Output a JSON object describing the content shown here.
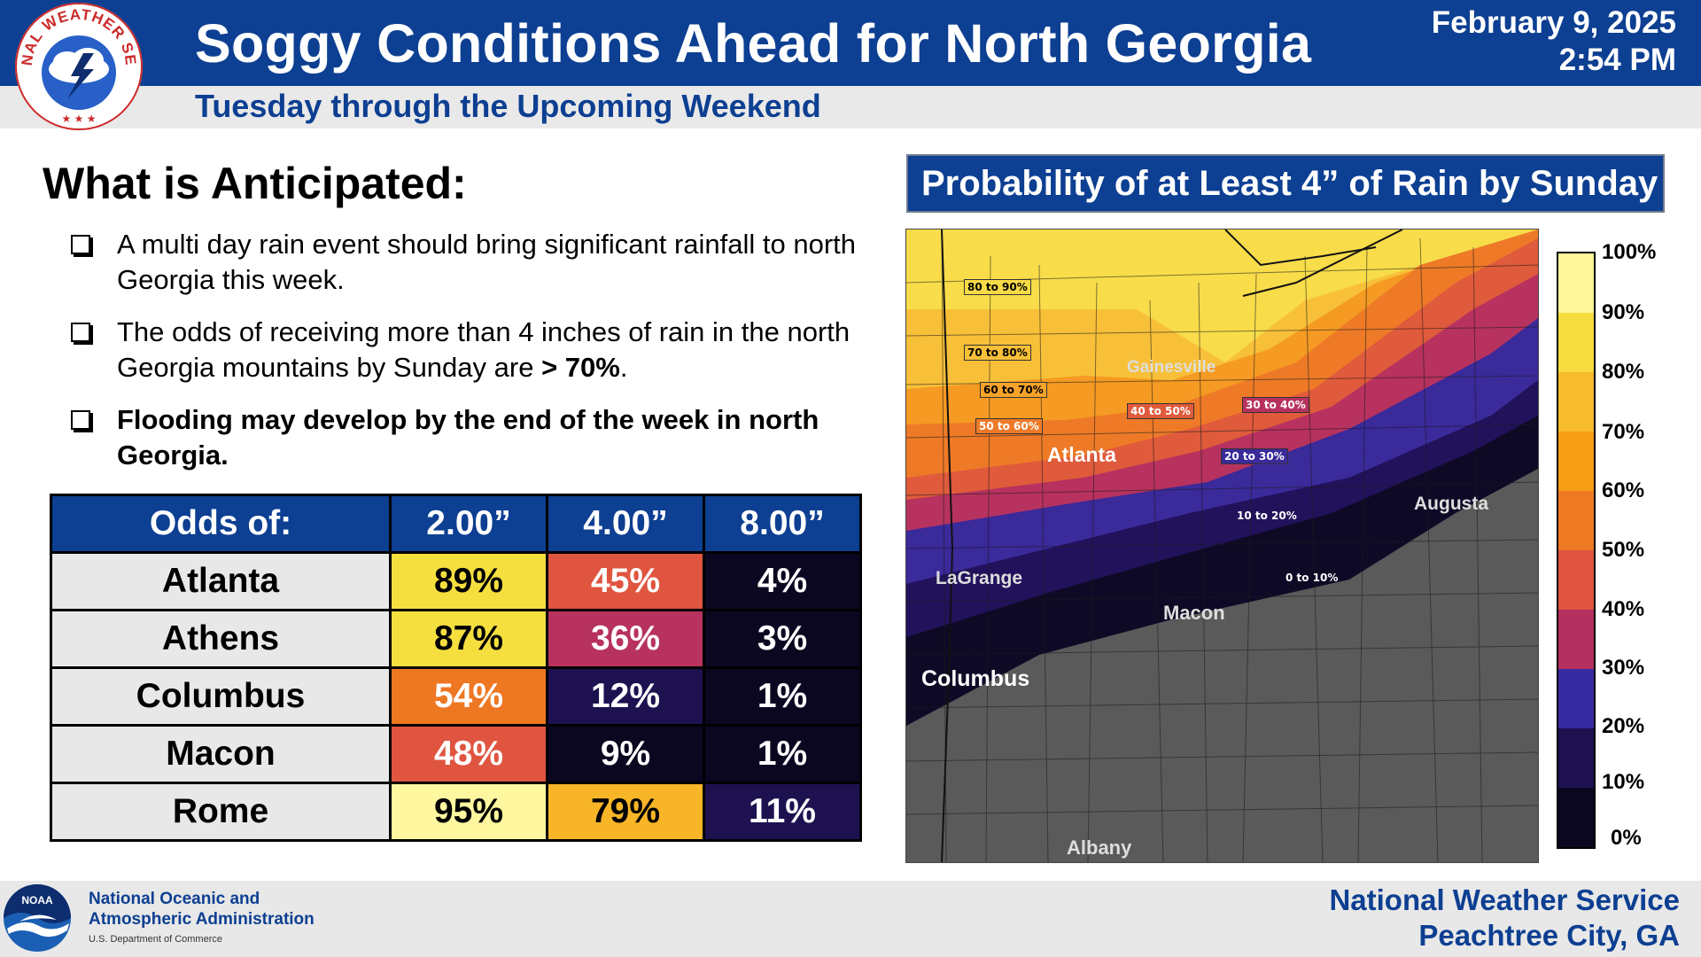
{
  "header": {
    "title": "Soggy Conditions Ahead for North Georgia",
    "subtitle": "Tuesday through the Upcoming Weekend",
    "date": "February 9, 2025",
    "time": "2:54 PM",
    "logo_text_top": "NATIONAL WEATHER SERVICE",
    "logo_icon": "nws-seal-icon"
  },
  "anticipated": {
    "heading": "What is Anticipated:",
    "bullets": [
      {
        "text": "A multi day rain event should bring significant rainfall to north Georgia this week."
      },
      {
        "text_pre": "The odds of receiving more than 4 inches of rain in the north Georgia mountains by Sunday are ",
        "text_bold": "> 70%",
        "text_post": "."
      },
      {
        "text": "Flooding may develop by the end of the week in north Georgia."
      }
    ]
  },
  "odds_table": {
    "headers": [
      "Odds of:",
      "2.00”",
      "4.00”",
      "8.00”"
    ],
    "rows": [
      {
        "city": "Atlanta",
        "values": [
          "89%",
          "45%",
          "4%"
        ]
      },
      {
        "city": "Athens",
        "values": [
          "87%",
          "36%",
          "3%"
        ]
      },
      {
        "city": "Columbus",
        "values": [
          "54%",
          "12%",
          "1%"
        ]
      },
      {
        "city": "Macon",
        "values": [
          "48%",
          "9%",
          "1%"
        ]
      },
      {
        "city": "Rome",
        "values": [
          "95%",
          "79%",
          "11%"
        ]
      }
    ],
    "cell_colors": [
      [
        "#f5df3f",
        "#df5540",
        "#0b0720"
      ],
      [
        "#f5df3f",
        "#b7325f",
        "#0b0720"
      ],
      [
        "#ee7722",
        "#1e1150",
        "#0b0720"
      ],
      [
        "#df5540",
        "#0b0720",
        "#0b0720"
      ],
      [
        "#fef7a0",
        "#f8b528",
        "#1e1150"
      ]
    ],
    "cell_text_colors": [
      [
        "#000000",
        "#ffffff",
        "#ffffff"
      ],
      [
        "#000000",
        "#ffffff",
        "#ffffff"
      ],
      [
        "#ffffff",
        "#ffffff",
        "#ffffff"
      ],
      [
        "#ffffff",
        "#ffffff",
        "#ffffff"
      ],
      [
        "#000000",
        "#000000",
        "#ffffff"
      ]
    ]
  },
  "map_panel": {
    "title": "Probability of at Least 4” of Rain by Sunday",
    "cities": [
      "Gainesville",
      "Atlanta",
      "Augusta",
      "LaGrange",
      "Macon",
      "Columbus",
      "Albany"
    ],
    "band_labels": [
      "80 to 90%",
      "70 to 80%",
      "60 to 70%",
      "50 to 60%",
      "40 to 50%",
      "30 to 40%",
      "20 to 30%",
      "10 to 20%",
      "0 to 10%"
    ],
    "band_colors": [
      "#f8dc4a",
      "#f8c038",
      "#f59a22",
      "#ee7a28",
      "#e05a3c",
      "#b7325e",
      "#3a2a9a",
      "#22125c",
      "#0e0a26",
      "#5a5a5a"
    ]
  },
  "legend": {
    "ticks": [
      "100%",
      "90%",
      "80%",
      "70%",
      "60%",
      "50%",
      "40%",
      "30%",
      "20%",
      "10%",
      "0%"
    ],
    "colors": [
      "#fff79a",
      "#f6dd3d",
      "#f8bb2c",
      "#f89d16",
      "#ef7a24",
      "#df5540",
      "#b3305f",
      "#372aa0",
      "#1e1150",
      "#0b0720"
    ]
  },
  "footer": {
    "noaa_line1": "National Oceanic and",
    "noaa_line2": "Atmospheric Administration",
    "noaa_line3": "U.S. Department of Commerce",
    "noaa_logo_text": "NOAA",
    "nws_office_line1": "National Weather Service",
    "nws_office_line2": "Peachtree City, GA"
  }
}
